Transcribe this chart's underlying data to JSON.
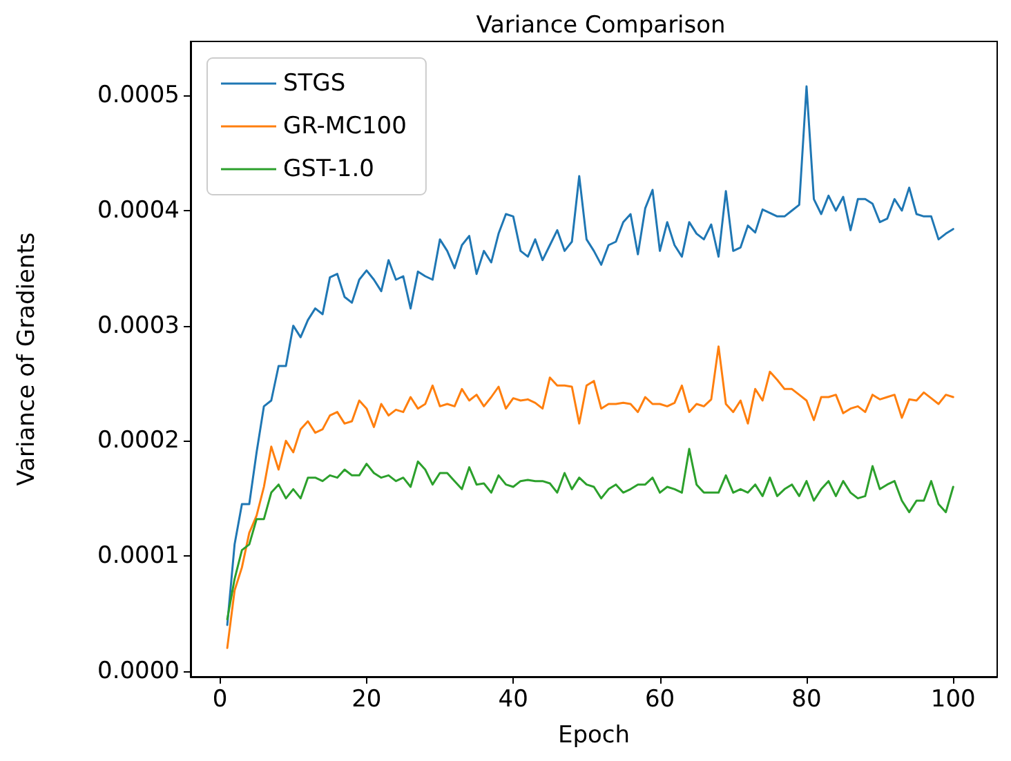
{
  "chart_data": {
    "type": "line",
    "title": "Variance Comparison",
    "xlabel": "Epoch",
    "ylabel": "Variance of Gradients",
    "x": [
      1,
      2,
      3,
      4,
      5,
      6,
      7,
      8,
      9,
      10,
      11,
      12,
      13,
      14,
      15,
      16,
      17,
      18,
      19,
      20,
      21,
      22,
      23,
      24,
      25,
      26,
      27,
      28,
      29,
      30,
      31,
      32,
      33,
      34,
      35,
      36,
      37,
      38,
      39,
      40,
      41,
      42,
      43,
      44,
      45,
      46,
      47,
      48,
      49,
      50,
      51,
      52,
      53,
      54,
      55,
      56,
      57,
      58,
      59,
      60,
      61,
      62,
      63,
      64,
      65,
      66,
      67,
      68,
      69,
      70,
      71,
      72,
      73,
      74,
      75,
      76,
      77,
      78,
      79,
      80,
      81,
      82,
      83,
      84,
      85,
      86,
      87,
      88,
      89,
      90,
      91,
      92,
      93,
      94,
      95,
      96,
      97,
      98,
      99,
      100
    ],
    "series": [
      {
        "name": "STGS",
        "color": "#1f77b4",
        "values": [
          4e-05,
          0.00011,
          0.000145,
          0.000145,
          0.00019,
          0.00023,
          0.000235,
          0.000265,
          0.000265,
          0.0003,
          0.00029,
          0.000305,
          0.000315,
          0.00031,
          0.000342,
          0.000345,
          0.000325,
          0.00032,
          0.00034,
          0.000348,
          0.00034,
          0.00033,
          0.000357,
          0.00034,
          0.000343,
          0.000315,
          0.000347,
          0.000343,
          0.00034,
          0.000375,
          0.000365,
          0.00035,
          0.00037,
          0.000378,
          0.000345,
          0.000365,
          0.000355,
          0.00038,
          0.000397,
          0.000395,
          0.000365,
          0.00036,
          0.000375,
          0.000357,
          0.00037,
          0.000383,
          0.000365,
          0.000373,
          0.00043,
          0.000375,
          0.000365,
          0.000353,
          0.00037,
          0.000373,
          0.00039,
          0.000397,
          0.000362,
          0.000402,
          0.000418,
          0.000365,
          0.00039,
          0.00037,
          0.00036,
          0.00039,
          0.00038,
          0.000375,
          0.000388,
          0.00036,
          0.000417,
          0.000365,
          0.000368,
          0.000387,
          0.000381,
          0.000401,
          0.000398,
          0.000395,
          0.000395,
          0.0004,
          0.000405,
          0.000508,
          0.00041,
          0.000397,
          0.000413,
          0.0004,
          0.000412,
          0.000383,
          0.00041,
          0.00041,
          0.000406,
          0.00039,
          0.000393,
          0.00041,
          0.0004,
          0.00042,
          0.000397,
          0.000395,
          0.000395,
          0.000375,
          0.00038,
          0.000384
        ]
      },
      {
        "name": "GR-MC100",
        "color": "#ff7f0e",
        "values": [
          2e-05,
          7e-05,
          9e-05,
          0.00012,
          0.000135,
          0.00016,
          0.000195,
          0.000175,
          0.0002,
          0.00019,
          0.00021,
          0.000217,
          0.000207,
          0.00021,
          0.000222,
          0.000225,
          0.000215,
          0.000217,
          0.000235,
          0.000228,
          0.000212,
          0.000232,
          0.000222,
          0.000227,
          0.000225,
          0.000238,
          0.000228,
          0.000232,
          0.000248,
          0.00023,
          0.000232,
          0.00023,
          0.000245,
          0.000235,
          0.00024,
          0.00023,
          0.000238,
          0.000247,
          0.000228,
          0.000237,
          0.000235,
          0.000236,
          0.000233,
          0.000228,
          0.000255,
          0.000248,
          0.000248,
          0.000247,
          0.000215,
          0.000248,
          0.000252,
          0.000228,
          0.000232,
          0.000232,
          0.000233,
          0.000232,
          0.000225,
          0.000238,
          0.000232,
          0.000232,
          0.00023,
          0.000233,
          0.000248,
          0.000225,
          0.000232,
          0.00023,
          0.000236,
          0.000282,
          0.000232,
          0.000225,
          0.000235,
          0.000215,
          0.000245,
          0.000235,
          0.00026,
          0.000253,
          0.000245,
          0.000245,
          0.00024,
          0.000235,
          0.000218,
          0.000238,
          0.000238,
          0.00024,
          0.000224,
          0.000228,
          0.00023,
          0.000225,
          0.00024,
          0.000236,
          0.000238,
          0.00024,
          0.00022,
          0.000236,
          0.000235,
          0.000242,
          0.000237,
          0.000232,
          0.00024,
          0.000238
        ]
      },
      {
        "name": "GST-1.0",
        "color": "#2ca02c",
        "values": [
          4.5e-05,
          8e-05,
          0.000105,
          0.00011,
          0.000132,
          0.000132,
          0.000155,
          0.000162,
          0.00015,
          0.000158,
          0.00015,
          0.000168,
          0.000168,
          0.000165,
          0.00017,
          0.000168,
          0.000175,
          0.00017,
          0.00017,
          0.00018,
          0.000172,
          0.000168,
          0.00017,
          0.000165,
          0.000168,
          0.00016,
          0.000182,
          0.000175,
          0.000162,
          0.000172,
          0.000172,
          0.000165,
          0.000158,
          0.000177,
          0.000162,
          0.000163,
          0.000155,
          0.00017,
          0.000162,
          0.00016,
          0.000165,
          0.000166,
          0.000165,
          0.000165,
          0.000163,
          0.000155,
          0.000172,
          0.000158,
          0.000168,
          0.000162,
          0.00016,
          0.00015,
          0.000158,
          0.000162,
          0.000155,
          0.000158,
          0.000162,
          0.000162,
          0.000168,
          0.000155,
          0.00016,
          0.000158,
          0.000155,
          0.000193,
          0.000162,
          0.000155,
          0.000155,
          0.000155,
          0.00017,
          0.000155,
          0.000158,
          0.000155,
          0.000162,
          0.000152,
          0.000168,
          0.000152,
          0.000158,
          0.000162,
          0.000152,
          0.000165,
          0.000148,
          0.000158,
          0.000165,
          0.000152,
          0.000165,
          0.000155,
          0.00015,
          0.000152,
          0.000178,
          0.000158,
          0.000162,
          0.000165,
          0.000148,
          0.000138,
          0.000148,
          0.000148,
          0.000165,
          0.000145,
          0.000138,
          0.00016
        ]
      }
    ],
    "xlim": [
      -4,
      106
    ],
    "xticks": [
      0,
      20,
      40,
      60,
      80,
      100
    ],
    "ylim": [
      -5e-06,
      0.000547
    ],
    "yticks": [
      {
        "value": 0,
        "label": "0.0000"
      },
      {
        "value": 0.0001,
        "label": "0.0001"
      },
      {
        "value": 0.0002,
        "label": "0.0002"
      },
      {
        "value": 0.0003,
        "label": "0.0003"
      },
      {
        "value": 0.0004,
        "label": "0.0004"
      },
      {
        "value": 0.0005,
        "label": "0.0005"
      }
    ],
    "legend": "top left",
    "grid": false,
    "marker": "none",
    "line_style": "solid"
  }
}
